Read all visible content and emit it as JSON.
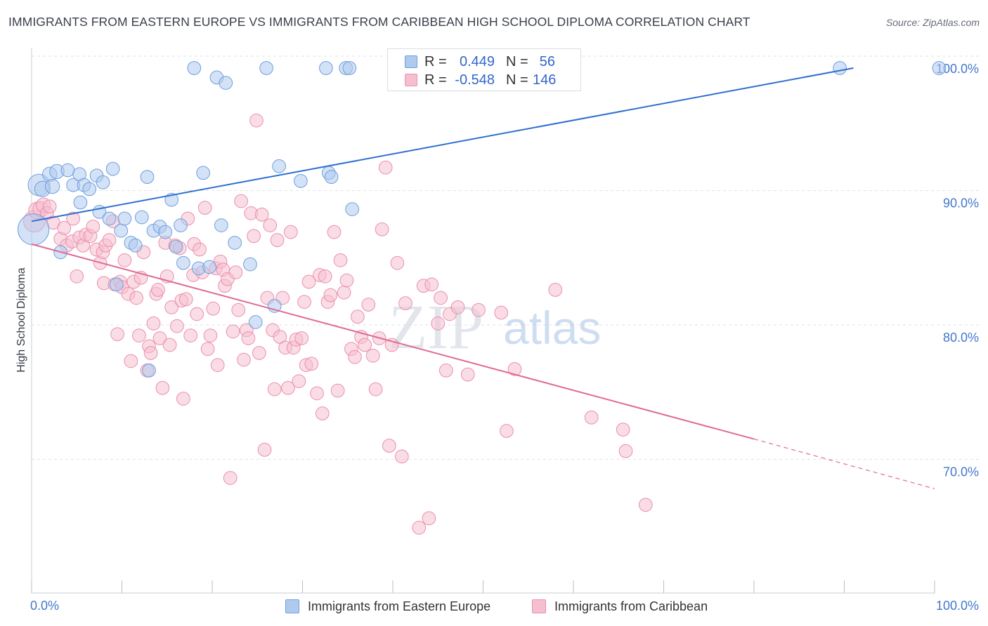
{
  "title": "IMMIGRANTS FROM EASTERN EUROPE VS IMMIGRANTS FROM CARIBBEAN HIGH SCHOOL DIPLOMA CORRELATION CHART",
  "source": "Source: ZipAtlas.com",
  "watermark": {
    "zip": "ZIP",
    "atlas": "atlas"
  },
  "colors": {
    "blue_fill": "#aecbef",
    "blue_stroke": "#6f9fde",
    "blue_line": "#2f6fd0",
    "pink_fill": "#f6bfd0",
    "pink_stroke": "#eb8fae",
    "pink_line": "#e06a95",
    "grid": "#dfe2e8",
    "tick_text": "#4477cc"
  },
  "legend": {
    "rows": [
      {
        "r_label": "R =",
        "r_value": "0.449",
        "n_label": "N =",
        "n_value": "56"
      },
      {
        "r_label": "R =",
        "r_value": "-0.548",
        "n_label": "N =",
        "n_value": "146"
      }
    ]
  },
  "bottom_legend": {
    "series1": "Immigrants from Eastern Europe",
    "series2": "Immigrants from Caribbean"
  },
  "chart_data": {
    "type": "scatter",
    "title": "IMMIGRANTS FROM EASTERN EUROPE VS IMMIGRANTS FROM CARIBBEAN HIGH SCHOOL DIPLOMA CORRELATION CHART",
    "xlabel": "",
    "ylabel": "High School Diploma",
    "x_tick_labels": [
      "0.0%",
      "100.0%"
    ],
    "y_tick_labels": [
      "100.0%",
      "90.0%",
      "80.0%",
      "70.0%"
    ],
    "y_ticks": [
      100,
      90,
      80,
      70
    ],
    "xlim": [
      0,
      100
    ],
    "ylim": [
      60.5,
      101.5
    ],
    "grid": true,
    "legend_placement": "top-center",
    "series": [
      {
        "name": "Immigrants from Eastern Europe",
        "R": 0.449,
        "N": 56,
        "trend": {
          "x0": 0,
          "y0": 88.6,
          "x1": 91,
          "y1": 100.0
        },
        "points": [
          [
            0.2,
            88,
            2.6
          ],
          [
            0.8,
            91.3,
            1.8
          ],
          [
            1.2,
            91,
            1.3
          ],
          [
            2,
            92.1,
            1.2
          ],
          [
            2.3,
            91.2,
            1.2
          ],
          [
            2.8,
            92.3,
            1.2
          ],
          [
            3.2,
            86.3,
            1.1
          ],
          [
            4,
            92.4,
            1.1
          ],
          [
            4.6,
            91.3,
            1.1
          ],
          [
            5.3,
            92.1,
            1.1
          ],
          [
            5.8,
            91.3,
            1.1
          ],
          [
            5.4,
            90,
            1.1
          ],
          [
            6.4,
            91,
            1.1
          ],
          [
            7.2,
            92,
            1.1
          ],
          [
            7.5,
            89.3,
            1.1
          ],
          [
            7.9,
            91.5,
            1.1
          ],
          [
            8.6,
            88.8,
            1.1
          ],
          [
            9,
            92.5,
            1.1
          ],
          [
            9.4,
            83.9,
            1.1
          ],
          [
            9.9,
            87.9,
            1.1
          ],
          [
            10.3,
            88.8,
            1.1
          ],
          [
            11,
            87,
            1.1
          ],
          [
            11.5,
            86.8,
            1.1
          ],
          [
            12.2,
            88.9,
            1.1
          ],
          [
            12.8,
            91.9,
            1.1
          ],
          [
            13,
            77.5,
            1.1
          ],
          [
            13.5,
            87.9,
            1.1
          ],
          [
            14.2,
            88.2,
            1.1
          ],
          [
            14.8,
            87.8,
            1.1
          ],
          [
            15.5,
            90.2,
            1.1
          ],
          [
            16,
            86.7,
            1.1
          ],
          [
            16.5,
            88.3,
            1.1
          ],
          [
            16.8,
            85.5,
            1.1
          ],
          [
            18,
            100,
            1.1
          ],
          [
            18.5,
            85.1,
            1.1
          ],
          [
            19,
            92.2,
            1.1
          ],
          [
            19.7,
            85.2,
            1.1
          ],
          [
            20.5,
            99.3,
            1.1
          ],
          [
            21,
            88.3,
            1.1
          ],
          [
            21.5,
            98.9,
            1.1
          ],
          [
            22.5,
            87,
            1.1
          ],
          [
            24.2,
            85.4,
            1.1
          ],
          [
            24.8,
            81.1,
            1.1
          ],
          [
            26,
            100,
            1.1
          ],
          [
            26.9,
            82.3,
            1.1
          ],
          [
            27.4,
            92.7,
            1.1
          ],
          [
            29.8,
            91.6,
            1.1
          ],
          [
            32.6,
            100,
            1.1
          ],
          [
            32.9,
            92.2,
            1.1
          ],
          [
            33.2,
            91.9,
            1.1
          ],
          [
            34.8,
            100,
            1.1
          ],
          [
            35.2,
            100,
            1.1
          ],
          [
            35.5,
            89.5,
            1.1
          ],
          [
            50,
            100,
            1.1
          ],
          [
            89.5,
            100,
            1.1
          ],
          [
            100.5,
            100,
            1.1
          ]
        ]
      },
      {
        "name": "Immigrants from Caribbean",
        "R": -0.548,
        "N": 146,
        "trend": {
          "x0": 0,
          "y0": 86.9,
          "x1": 80,
          "y1": 72.4
        },
        "trend_dashed": {
          "x0": 80,
          "y0": 72.4,
          "x1": 100,
          "y1": 68.7
        },
        "points": [
          [
            0.3,
            88.6,
            1.8
          ],
          [
            0.6,
            89.4,
            1.4
          ],
          [
            1,
            89.5,
            1.3
          ],
          [
            1.3,
            89.8,
            1.2
          ],
          [
            1.7,
            89.2,
            1.1
          ],
          [
            2,
            89.7,
            1.1
          ],
          [
            2.4,
            88.5,
            1.1
          ],
          [
            3.2,
            87.3,
            1.1
          ],
          [
            3.6,
            88.1,
            1.1
          ],
          [
            3.9,
            86.8,
            1.1
          ],
          [
            4.5,
            87.1,
            1.1
          ],
          [
            4.6,
            88.8,
            1.1
          ],
          [
            5,
            84.5,
            1.1
          ],
          [
            5.3,
            87.4,
            1.1
          ],
          [
            5.7,
            86.8,
            1.1
          ],
          [
            6,
            87.6,
            1.1
          ],
          [
            6.5,
            87.5,
            1.1
          ],
          [
            6.8,
            88.2,
            1.1
          ],
          [
            7.2,
            86.5,
            1.1
          ],
          [
            7.6,
            85.5,
            1.1
          ],
          [
            7.9,
            86.3,
            1.1
          ],
          [
            8,
            84,
            1.1
          ],
          [
            8.2,
            86.8,
            1.1
          ],
          [
            8.6,
            87.2,
            1.1
          ],
          [
            9,
            88.6,
            1.1
          ],
          [
            9.2,
            83.9,
            1.1
          ],
          [
            9.5,
            80.2,
            1.1
          ],
          [
            9.8,
            84.1,
            1.1
          ],
          [
            10,
            83.7,
            1.1
          ],
          [
            10.3,
            85.7,
            1.1
          ],
          [
            10.7,
            83.2,
            1.1
          ],
          [
            11,
            78.2,
            1.1
          ],
          [
            11.3,
            84.1,
            1.1
          ],
          [
            11.6,
            82.9,
            1.1
          ],
          [
            11.9,
            80.1,
            1.1
          ],
          [
            12.1,
            84.4,
            1.1
          ],
          [
            12.4,
            86.3,
            1.1
          ],
          [
            12.8,
            77.5,
            1.1
          ],
          [
            13,
            79.3,
            1.1
          ],
          [
            13.2,
            78.8,
            1.1
          ],
          [
            13.5,
            81,
            1.1
          ],
          [
            13.8,
            83.2,
            1.1
          ],
          [
            14,
            83.5,
            1.1
          ],
          [
            14.2,
            79.9,
            1.1
          ],
          [
            14.5,
            76.2,
            1.1
          ],
          [
            14.8,
            87,
            1.1
          ],
          [
            15,
            84.5,
            1.1
          ],
          [
            15.3,
            79.4,
            1.1
          ],
          [
            15.5,
            82.2,
            1.1
          ],
          [
            15.9,
            86.8,
            1.1
          ],
          [
            16.1,
            80.8,
            1.1
          ],
          [
            16.4,
            86.6,
            1.1
          ],
          [
            16.6,
            82.7,
            1.1
          ],
          [
            16.8,
            75.4,
            1.1
          ],
          [
            17.1,
            82.8,
            1.1
          ],
          [
            17.3,
            88.8,
            1.1
          ],
          [
            17.6,
            80.1,
            1.1
          ],
          [
            17.9,
            84.6,
            1.1
          ],
          [
            18,
            86.9,
            1.1
          ],
          [
            18.3,
            81.7,
            1.1
          ],
          [
            18.6,
            86.5,
            1.1
          ],
          [
            18.9,
            84.8,
            1.1
          ],
          [
            19.2,
            89.6,
            1.1
          ],
          [
            19.5,
            79.1,
            1.1
          ],
          [
            19.8,
            80.1,
            1.1
          ],
          [
            20.1,
            82.1,
            1.1
          ],
          [
            20.4,
            85.1,
            1.1
          ],
          [
            20.6,
            77.9,
            1.1
          ],
          [
            20.9,
            85.6,
            1.1
          ],
          [
            21.2,
            85,
            1.1
          ],
          [
            21.4,
            83.8,
            1.1
          ],
          [
            21.7,
            84.3,
            1.1
          ],
          [
            22,
            69.5,
            1.1
          ],
          [
            22.3,
            80.4,
            1.1
          ],
          [
            22.6,
            84.8,
            1.1
          ],
          [
            22.9,
            82,
            1.1
          ],
          [
            23.2,
            90.1,
            1.1
          ],
          [
            23.5,
            78.3,
            1.1
          ],
          [
            23.8,
            80.5,
            1.1
          ],
          [
            24,
            79.9,
            1.1
          ],
          [
            24.3,
            89.2,
            1.1
          ],
          [
            24.6,
            87.5,
            1.1
          ],
          [
            24.9,
            96.1,
            1.1
          ],
          [
            25.2,
            78.8,
            1.1
          ],
          [
            25.5,
            89.1,
            1.1
          ],
          [
            25.8,
            71.6,
            1.1
          ],
          [
            26.1,
            82.9,
            1.1
          ],
          [
            26.4,
            88.3,
            1.1
          ],
          [
            26.7,
            80.5,
            1.1
          ],
          [
            26.9,
            76.1,
            1.1
          ],
          [
            27.2,
            87.2,
            1.1
          ],
          [
            27.5,
            80,
            1.1
          ],
          [
            27.8,
            82.9,
            1.1
          ],
          [
            28.1,
            79.2,
            1.1
          ],
          [
            28.4,
            76.2,
            1.1
          ],
          [
            28.7,
            87.8,
            1.1
          ],
          [
            29,
            79.2,
            1.1
          ],
          [
            29.3,
            79.8,
            1.1
          ],
          [
            29.6,
            76.7,
            1.1
          ],
          [
            29.9,
            79.9,
            1.1
          ],
          [
            30.2,
            82.6,
            1.1
          ],
          [
            30.4,
            77.9,
            1.1
          ],
          [
            30.7,
            84.1,
            1.1
          ],
          [
            31,
            78,
            1.1
          ],
          [
            31.6,
            75.8,
            1.1
          ],
          [
            31.9,
            84.6,
            1.1
          ],
          [
            32.2,
            74.3,
            1.1
          ],
          [
            32.5,
            84.5,
            1.1
          ],
          [
            32.8,
            82.6,
            1.1
          ],
          [
            33.1,
            83.1,
            1.1
          ],
          [
            33.5,
            87.8,
            1.1
          ],
          [
            33.9,
            76,
            1.1
          ],
          [
            34.2,
            85.7,
            1.1
          ],
          [
            34.6,
            83.3,
            1.1
          ],
          [
            34.9,
            84.2,
            1.1
          ],
          [
            35.4,
            79.1,
            1.1
          ],
          [
            35.8,
            78.5,
            1.1
          ],
          [
            36.1,
            81.5,
            1.1
          ],
          [
            36.5,
            80,
            1.1
          ],
          [
            36.9,
            79.4,
            1.1
          ],
          [
            37.3,
            82.4,
            1.1
          ],
          [
            37.8,
            78.6,
            1.1
          ],
          [
            38.1,
            76.1,
            1.1
          ],
          [
            38.5,
            79.9,
            1.1
          ],
          [
            38.8,
            88,
            1.1
          ],
          [
            39.2,
            92.6,
            1.1
          ],
          [
            39.6,
            71.9,
            1.1
          ],
          [
            39.9,
            79.4,
            1.1
          ],
          [
            40.5,
            85.5,
            1.1
          ],
          [
            41,
            71.1,
            1.1
          ],
          [
            41.4,
            82.5,
            1.1
          ],
          [
            42.9,
            65.8,
            1.1
          ],
          [
            43.4,
            83.8,
            1.1
          ],
          [
            44,
            66.5,
            1.1
          ],
          [
            44.3,
            83.9,
            1.1
          ],
          [
            45,
            81,
            1.1
          ],
          [
            45.3,
            82.9,
            1.1
          ],
          [
            45.9,
            77.5,
            1.1
          ],
          [
            46.3,
            81.7,
            1.1
          ],
          [
            47.2,
            82.2,
            1.1
          ],
          [
            48.3,
            77.2,
            1.1
          ],
          [
            49.5,
            82,
            1.1
          ],
          [
            52,
            81.8,
            1.1
          ],
          [
            52.6,
            73,
            1.1
          ],
          [
            53.5,
            77.6,
            1.1
          ],
          [
            58,
            83.5,
            1.1
          ],
          [
            62,
            74,
            1.1
          ],
          [
            65.5,
            73.1,
            1.1
          ],
          [
            65.8,
            71.5,
            1.1
          ],
          [
            68,
            67.5,
            1.1
          ]
        ]
      }
    ]
  }
}
